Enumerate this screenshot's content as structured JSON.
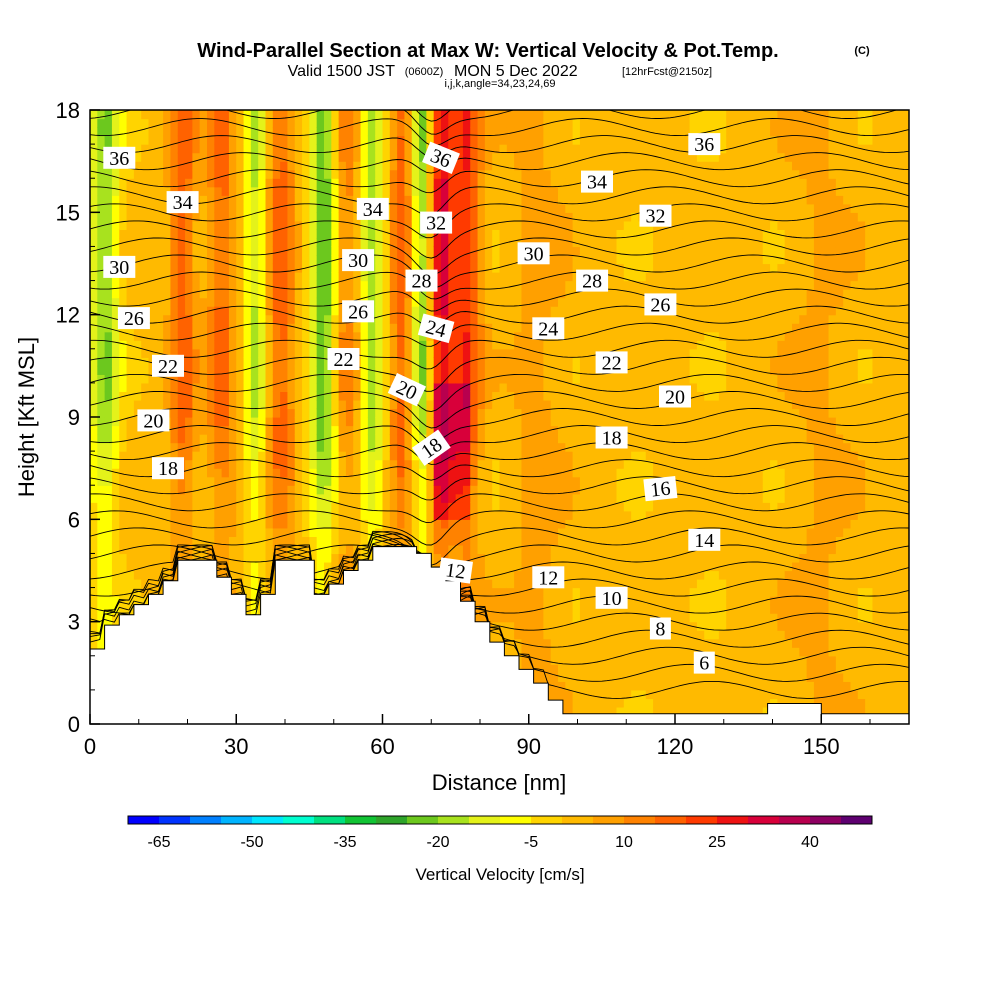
{
  "title": {
    "main": "Wind-Parallel Section at Max W: Vertical Velocity & Pot.Temp.",
    "copyright": "(C)",
    "valid_a": "Valid 1500 JST",
    "valid_utc": "(0600Z)",
    "valid_b": "MON 5 Dec 2022",
    "forecast": "[12hrFcst@2150z]",
    "params": "i,j,k,angle=34,23,24,69"
  },
  "chart_data": {
    "type": "heatmap",
    "xlabel": "Distance [nm]",
    "ylabel": "Height [Kft MSL]",
    "xlim": [
      0,
      168
    ],
    "ylim": [
      0,
      18
    ],
    "x_ticks": [
      "0",
      "30",
      "60",
      "90",
      "120",
      "150"
    ],
    "x_tick_values": [
      0,
      30,
      60,
      90,
      120,
      150
    ],
    "y_ticks": [
      "0",
      "3",
      "6",
      "9",
      "12",
      "15",
      "18"
    ],
    "y_tick_values": [
      0,
      3,
      6,
      9,
      12,
      15,
      18
    ],
    "colorbar": {
      "label": "Vertical Velocity [cm/s]",
      "tick_labels": [
        "-65",
        "-50",
        "-35",
        "-20",
        "-5",
        "10",
        "25",
        "40"
      ],
      "min": -70,
      "max": 50,
      "step": 5,
      "colors": [
        "#0000ff",
        "#0033ff",
        "#0080ff",
        "#00b4ff",
        "#00e6ff",
        "#00ffd0",
        "#00e080",
        "#11c434",
        "#2ea42a",
        "#6cc81e",
        "#a8e21e",
        "#e4f21a",
        "#ffff00",
        "#ffd400",
        "#ffba00",
        "#ffa000",
        "#ff8200",
        "#ff6200",
        "#ff3a00",
        "#ee1212",
        "#d8003a",
        "#b8004e",
        "#8e0062",
        "#5e0070"
      ]
    },
    "terrain_kft": [
      [
        0,
        2.2
      ],
      [
        3,
        2.2
      ],
      [
        3,
        2.9
      ],
      [
        6,
        2.9
      ],
      [
        6,
        3.2
      ],
      [
        9,
        3.2
      ],
      [
        9,
        3.5
      ],
      [
        12,
        3.5
      ],
      [
        12,
        3.8
      ],
      [
        15,
        3.8
      ],
      [
        15,
        4.2
      ],
      [
        18,
        4.2
      ],
      [
        18,
        4.8
      ],
      [
        26,
        4.8
      ],
      [
        26,
        4.3
      ],
      [
        29,
        4.3
      ],
      [
        29,
        3.8
      ],
      [
        32,
        3.8
      ],
      [
        32,
        3.2
      ],
      [
        35,
        3.2
      ],
      [
        35,
        3.8
      ],
      [
        38,
        3.8
      ],
      [
        38,
        4.8
      ],
      [
        43,
        4.8
      ],
      [
        43,
        4.8
      ],
      [
        46,
        4.8
      ],
      [
        46,
        3.8
      ],
      [
        49,
        3.8
      ],
      [
        49,
        4.1
      ],
      [
        52,
        4.1
      ],
      [
        52,
        4.5
      ],
      [
        55,
        4.5
      ],
      [
        55,
        4.8
      ],
      [
        58,
        4.8
      ],
      [
        58,
        5.2
      ],
      [
        67,
        5.2
      ],
      [
        67,
        5.0
      ],
      [
        70,
        5.0
      ],
      [
        70,
        4.6
      ],
      [
        73,
        4.6
      ],
      [
        73,
        4.2
      ],
      [
        76,
        4.2
      ],
      [
        76,
        3.6
      ],
      [
        79,
        3.6
      ],
      [
        79,
        3.0
      ],
      [
        82,
        3.0
      ],
      [
        82,
        2.4
      ],
      [
        85,
        2.4
      ],
      [
        85,
        2.0
      ],
      [
        88,
        2.0
      ],
      [
        88,
        1.6
      ],
      [
        91,
        1.6
      ],
      [
        91,
        1.2
      ],
      [
        94,
        1.2
      ],
      [
        94,
        0.7
      ],
      [
        97,
        0.7
      ],
      [
        97,
        0.3
      ],
      [
        139,
        0.3
      ],
      [
        139,
        0.6
      ],
      [
        150,
        0.6
      ],
      [
        150,
        0.3
      ],
      [
        168,
        0.3
      ]
    ],
    "columns": [
      {
        "x": 3,
        "w": 3,
        "amp": -22
      },
      {
        "x": 19,
        "w": 2.5,
        "amp": 16
      },
      {
        "x": 27,
        "w": 3,
        "amp": 14
      },
      {
        "x": 34,
        "w": 2.5,
        "amp": -18
      },
      {
        "x": 39,
        "w": 3,
        "amp": 16
      },
      {
        "x": 48,
        "w": 3,
        "amp": -28
      },
      {
        "x": 52,
        "w": 3,
        "amp": 12
      },
      {
        "x": 58,
        "w": 2.5,
        "amp": -20
      },
      {
        "x": 64,
        "w": 2.5,
        "amp": 16
      },
      {
        "x": 68,
        "w": 2.2,
        "amp": -24
      },
      {
        "x": 72,
        "w": 2.5,
        "amp": 28
      },
      {
        "x": 77,
        "w": 3,
        "amp": 22
      },
      {
        "x": 92,
        "w": 5,
        "amp": 6
      },
      {
        "x": 150,
        "w": 6,
        "amp": 5
      }
    ],
    "isentrope_labels": [
      {
        "text": "36",
        "x": 6,
        "y": 16.6,
        "rot": 0
      },
      {
        "text": "34",
        "x": 19,
        "y": 15.3,
        "rot": 0
      },
      {
        "text": "30",
        "x": 6,
        "y": 13.4,
        "rot": 0
      },
      {
        "text": "26",
        "x": 9,
        "y": 11.9,
        "rot": 0
      },
      {
        "text": "22",
        "x": 16,
        "y": 10.5,
        "rot": 0
      },
      {
        "text": "20",
        "x": 13,
        "y": 8.9,
        "rot": 0
      },
      {
        "text": "18",
        "x": 16,
        "y": 7.5,
        "rot": 0
      },
      {
        "text": "34",
        "x": 58,
        "y": 15.1,
        "rot": 0
      },
      {
        "text": "30",
        "x": 55,
        "y": 13.6,
        "rot": 0
      },
      {
        "text": "26",
        "x": 55,
        "y": 12.1,
        "rot": 0
      },
      {
        "text": "22",
        "x": 52,
        "y": 10.7,
        "rot": 0
      },
      {
        "text": "36",
        "x": 72,
        "y": 16.6,
        "rot": 22
      },
      {
        "text": "32",
        "x": 71,
        "y": 14.7,
        "rot": 0
      },
      {
        "text": "28",
        "x": 68,
        "y": 13.0,
        "rot": 0
      },
      {
        "text": "24",
        "x": 71,
        "y": 11.6,
        "rot": 15
      },
      {
        "text": "20",
        "x": 65,
        "y": 9.8,
        "rot": 25
      },
      {
        "text": "18",
        "x": 70,
        "y": 8.1,
        "rot": -35
      },
      {
        "text": "12",
        "x": 75,
        "y": 4.5,
        "rot": 8
      },
      {
        "text": "36",
        "x": 126,
        "y": 17.0,
        "rot": 0
      },
      {
        "text": "34",
        "x": 104,
        "y": 15.9,
        "rot": 0
      },
      {
        "text": "32",
        "x": 116,
        "y": 14.9,
        "rot": 0
      },
      {
        "text": "30",
        "x": 91,
        "y": 13.8,
        "rot": 0
      },
      {
        "text": "28",
        "x": 103,
        "y": 13.0,
        "rot": 0
      },
      {
        "text": "26",
        "x": 117,
        "y": 12.3,
        "rot": 0
      },
      {
        "text": "24",
        "x": 94,
        "y": 11.6,
        "rot": 0
      },
      {
        "text": "22",
        "x": 107,
        "y": 10.6,
        "rot": 0
      },
      {
        "text": "20",
        "x": 120,
        "y": 9.6,
        "rot": 0
      },
      {
        "text": "18",
        "x": 107,
        "y": 8.4,
        "rot": 0
      },
      {
        "text": "16",
        "x": 117,
        "y": 6.9,
        "rot": -6
      },
      {
        "text": "14",
        "x": 126,
        "y": 5.4,
        "rot": 0
      },
      {
        "text": "12",
        "x": 94,
        "y": 4.3,
        "rot": 0
      },
      {
        "text": "10",
        "x": 107,
        "y": 3.7,
        "rot": 0
      },
      {
        "text": "8",
        "x": 117,
        "y": 2.8,
        "rot": 0
      },
      {
        "text": "6",
        "x": 126,
        "y": 1.8,
        "rot": 0
      }
    ]
  }
}
